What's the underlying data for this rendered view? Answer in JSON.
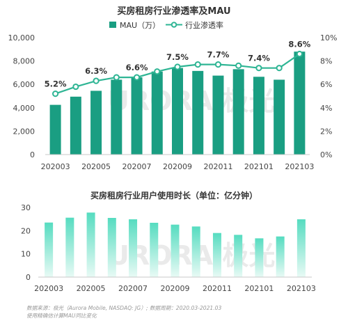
{
  "colors": {
    "bar_dark": "#1a9e82",
    "line": "#2eb594",
    "bar_light_top": "#56dcc0",
    "bar_light_bottom": "#e8faf5",
    "watermark": "#e5e5e5"
  },
  "watermark_text": "URORA 极光",
  "footer": {
    "line1": "数据来源：极光（Aurora Mobile, NASDAQ: JG）; 数据周期：2020.03-2021.03",
    "line2": "使用精确估计算MAU同比变化"
  },
  "chart_data": [
    {
      "type": "bar+line",
      "title": "买房租房行业渗透率及MAU",
      "legend": [
        "MAU（万）",
        "行业渗透率"
      ],
      "legend_position": "top-center",
      "categories": [
        "202003",
        "202004",
        "202005",
        "202006",
        "202007",
        "202008",
        "202009",
        "202010",
        "202011",
        "202012",
        "202101",
        "202102",
        "202103"
      ],
      "x_tick_labels": [
        "202003",
        "202005",
        "202007",
        "202009",
        "202011",
        "202101",
        "202103"
      ],
      "series": [
        {
          "name": "MAU（万）",
          "axis": "left",
          "type": "bar",
          "values": [
            4250,
            4950,
            5450,
            6400,
            6600,
            7100,
            7400,
            7150,
            6750,
            7300,
            6650,
            6400,
            8800
          ]
        },
        {
          "name": "行业渗透率",
          "axis": "right",
          "type": "line",
          "values": [
            5.2,
            5.8,
            6.3,
            6.6,
            6.6,
            7.1,
            7.5,
            7.7,
            7.7,
            7.6,
            7.4,
            7.4,
            8.6
          ]
        }
      ],
      "data_labels": [
        {
          "category": "202003",
          "text": "5.2%"
        },
        {
          "category": "202005",
          "text": "6.3%"
        },
        {
          "category": "202007",
          "text": "6.6%"
        },
        {
          "category": "202009",
          "text": "7.5%"
        },
        {
          "category": "202011",
          "text": "7.7%"
        },
        {
          "category": "202101",
          "text": "7.4%"
        },
        {
          "category": "202103",
          "text": "8.6%"
        }
      ],
      "y_left": {
        "ylim": [
          0,
          10000
        ],
        "ticks": [
          "0",
          "2,000",
          "4,000",
          "6,000",
          "8,000",
          "10,000"
        ]
      },
      "y_right": {
        "ylim": [
          0,
          10
        ],
        "ticks": [
          "0%",
          "2%",
          "4%",
          "6%",
          "8%",
          "10%"
        ]
      },
      "grid": false
    },
    {
      "type": "bar",
      "title": "买房租房行业用户使用时长（单位：亿分钟）",
      "categories": [
        "202003",
        "202004",
        "202005",
        "202006",
        "202007",
        "202008",
        "202009",
        "202010",
        "202011",
        "202012",
        "202101",
        "202102",
        "202103"
      ],
      "x_tick_labels": [
        "202003",
        "202005",
        "202007",
        "202009",
        "202011",
        "202101",
        "202103"
      ],
      "values": [
        23.5,
        25.6,
        27.8,
        25.5,
        24.9,
        23.4,
        22.6,
        21.8,
        19.0,
        18.2,
        16.7,
        17.5,
        24.9
      ],
      "ylim": [
        0,
        30
      ],
      "ticks": [
        "0",
        "10",
        "20",
        "30"
      ],
      "grid": false
    }
  ]
}
